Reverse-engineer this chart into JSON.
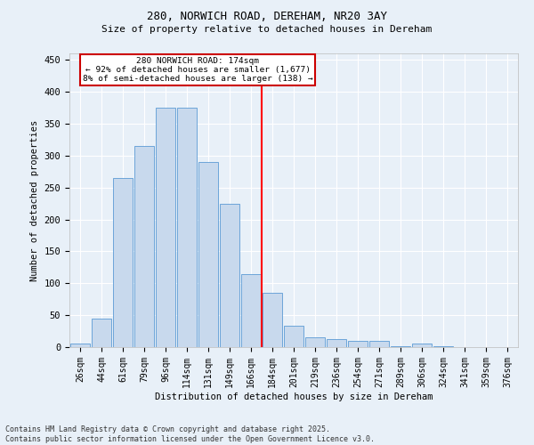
{
  "title1": "280, NORWICH ROAD, DEREHAM, NR20 3AY",
  "title2": "Size of property relative to detached houses in Dereham",
  "xlabel": "Distribution of detached houses by size in Dereham",
  "ylabel": "Number of detached properties",
  "bin_labels": [
    "26sqm",
    "44sqm",
    "61sqm",
    "79sqm",
    "96sqm",
    "114sqm",
    "131sqm",
    "149sqm",
    "166sqm",
    "184sqm",
    "201sqm",
    "219sqm",
    "236sqm",
    "254sqm",
    "271sqm",
    "289sqm",
    "306sqm",
    "324sqm",
    "341sqm",
    "359sqm",
    "376sqm"
  ],
  "bar_heights": [
    5,
    45,
    265,
    315,
    375,
    375,
    290,
    225,
    115,
    85,
    33,
    15,
    13,
    10,
    10,
    2,
    5,
    2,
    0,
    0,
    0
  ],
  "bar_color": "#c8d9ed",
  "bar_edge_color": "#5b9bd5",
  "vline_x_index": 9.0,
  "ylim": [
    0,
    460
  ],
  "yticks": [
    0,
    50,
    100,
    150,
    200,
    250,
    300,
    350,
    400,
    450
  ],
  "annotation_text_line1": "280 NORWICH ROAD: 174sqm",
  "annotation_text_line2": "← 92% of detached houses are smaller (1,677)",
  "annotation_text_line3": "8% of semi-detached houses are larger (138) →",
  "footnote": "Contains HM Land Registry data © Crown copyright and database right 2025.\nContains public sector information licensed under the Open Government Licence v3.0.",
  "bg_color": "#e8f0f8",
  "grid_color": "#ffffff",
  "annotation_box_color": "#cc0000",
  "title1_fontsize": 9,
  "title2_fontsize": 8,
  "tick_fontsize": 7,
  "ylabel_fontsize": 7.5,
  "xlabel_fontsize": 7.5,
  "footnote_fontsize": 6
}
